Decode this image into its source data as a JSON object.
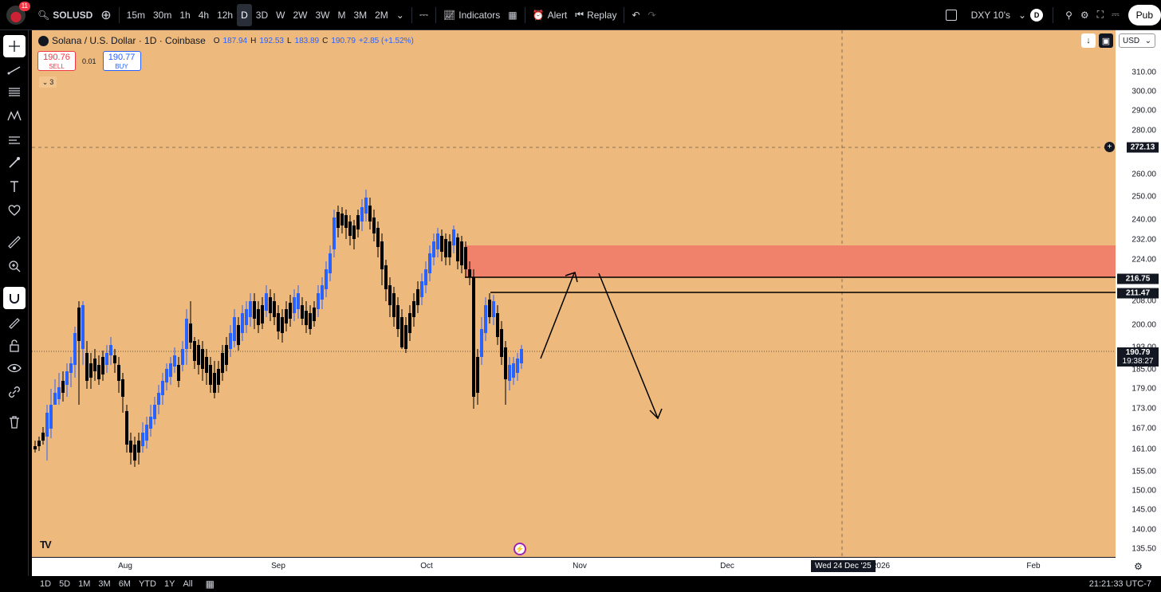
{
  "header": {
    "notification_count": "11",
    "symbol": "SOLUSD",
    "intervals": [
      "15m",
      "30m",
      "1h",
      "4h",
      "12h",
      "D",
      "3D",
      "W",
      "2W",
      "3W",
      "M",
      "3M",
      "2M"
    ],
    "active_interval": "D",
    "indicators_label": "Indicators",
    "alert_label": "Alert",
    "replay_label": "Replay",
    "compare_symbol": "DXY 10's",
    "compare_badge": "D",
    "publish_label": "Pub"
  },
  "legend": {
    "title": "Solana / U.S. Dollar · 1D · Coinbase",
    "open_k": "O",
    "open": "187.94",
    "high_k": "H",
    "high": "192.53",
    "low_k": "L",
    "low": "183.89",
    "close_k": "C",
    "close": "190.79",
    "change": "+2.85 (+1.52%)"
  },
  "trade": {
    "sell_price": "190.76",
    "sell_label": "SELL",
    "spread": "0.01",
    "buy_price": "190.77",
    "buy_label": "BUY",
    "collapsed_count": "3"
  },
  "price_axis": {
    "currency": "USD",
    "labels": [
      "310.00",
      "300.00",
      "290.00",
      "280.00",
      "260.00",
      "250.00",
      "240.00",
      "232.00",
      "224.00",
      "208.00",
      "200.00",
      "193.00",
      "185.00",
      "179.00",
      "173.00",
      "167.00",
      "161.00",
      "155.00",
      "150.00",
      "145.00",
      "140.00",
      "135.50"
    ],
    "cursor_price": "272.13",
    "level_1": "216.75",
    "level_2": "211.47",
    "last_price": "190.79",
    "countdown": "19:38:27"
  },
  "time_axis": {
    "labels": [
      "Aug",
      "Sep",
      "Oct",
      "Nov",
      "Dec",
      "2026",
      "Feb"
    ],
    "cursor_date": "Wed 24 Dec '25"
  },
  "bottom": {
    "ranges": [
      "1D",
      "5D",
      "1M",
      "3M",
      "6M",
      "YTD",
      "1Y",
      "All"
    ],
    "clock": "21:21:33 UTC-7"
  },
  "colors": {
    "chart_bg": "#edb97c",
    "bull": "#2962ff",
    "bear": "#000000",
    "zone": "#f0816a"
  },
  "icons": [
    "search-icon",
    "add-icon",
    "candle-style-icon",
    "indicators-icon",
    "layout-icon",
    "alert-icon",
    "replay-icon",
    "undo-icon",
    "redo-icon",
    "crosshair-icon",
    "trend-line-icon",
    "fib-icon",
    "pattern-icon",
    "ruler-icon",
    "brush-icon",
    "text-icon",
    "heart-icon",
    "measure-icon",
    "zoom-icon",
    "magnet-icon",
    "lock-icon",
    "eye-icon",
    "link-icon",
    "trash-icon",
    "settings-icon",
    "fullscreen-icon",
    "camera-icon"
  ]
}
